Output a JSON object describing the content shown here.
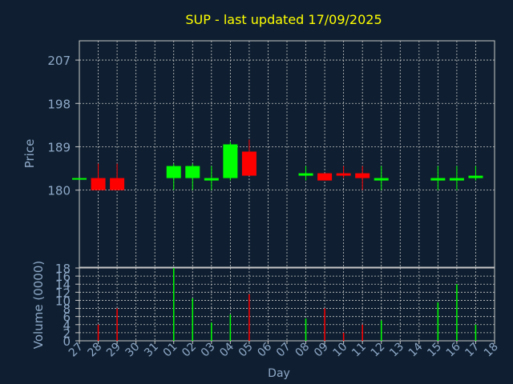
{
  "colors": {
    "background": "#0f1f31",
    "title": "#ffff00",
    "axis_text": "#8fa9c8",
    "grid": "#c8c8c8",
    "axis_line": "#c8c8c8",
    "up": "#00ff00",
    "down": "#ff0000"
  },
  "chart_data": [
    {
      "type": "candlestick",
      "title": "SUP - last updated 17/09/2025",
      "ylabel": "Price",
      "ylim": [
        164,
        211
      ],
      "y_ticks": [
        180,
        189,
        198,
        207
      ],
      "grid": true,
      "categories": [
        "27",
        "28",
        "29",
        "30",
        "31",
        "01",
        "02",
        "03",
        "04",
        "05",
        "06",
        "07",
        "08",
        "09",
        "10",
        "11",
        "12",
        "13",
        "14",
        "15",
        "16",
        "17",
        "18"
      ],
      "candles": [
        {
          "day": "27",
          "open": 182.5,
          "high": 182.5,
          "low": 182.5,
          "close": 182.5
        },
        {
          "day": "28",
          "open": 182.5,
          "high": 185.5,
          "low": 180.0,
          "close": 180.0
        },
        {
          "day": "29",
          "open": 182.5,
          "high": 185.5,
          "low": 180.0,
          "close": 180.0
        },
        {
          "day": "01",
          "open": 182.5,
          "high": 185.5,
          "low": 180.0,
          "close": 185.0
        },
        {
          "day": "02",
          "open": 182.5,
          "high": 185.5,
          "low": 180.0,
          "close": 185.0
        },
        {
          "day": "03",
          "open": 182.0,
          "high": 185.0,
          "low": 180.0,
          "close": 182.5
        },
        {
          "day": "04",
          "open": 182.5,
          "high": 190.0,
          "low": 182.0,
          "close": 189.5
        },
        {
          "day": "05",
          "open": 188.0,
          "high": 190.5,
          "low": 183.0,
          "close": 183.0
        },
        {
          "day": "08",
          "open": 183.0,
          "high": 185.0,
          "low": 182.0,
          "close": 183.5
        },
        {
          "day": "09",
          "open": 183.5,
          "high": 183.5,
          "low": 182.0,
          "close": 182.0
        },
        {
          "day": "10",
          "open": 183.5,
          "high": 185.0,
          "low": 182.5,
          "close": 183.0
        },
        {
          "day": "11",
          "open": 183.5,
          "high": 185.0,
          "low": 180.0,
          "close": 182.5
        },
        {
          "day": "12",
          "open": 182.0,
          "high": 185.0,
          "low": 180.0,
          "close": 182.5
        },
        {
          "day": "15",
          "open": 182.0,
          "high": 185.0,
          "low": 180.0,
          "close": 182.5
        },
        {
          "day": "16",
          "open": 182.0,
          "high": 185.0,
          "low": 180.0,
          "close": 182.5
        },
        {
          "day": "17",
          "open": 182.5,
          "high": 185.0,
          "low": 182.0,
          "close": 183.0
        }
      ]
    },
    {
      "type": "bar",
      "xlabel": "Day",
      "ylabel": "Volume (0000)",
      "ylim": [
        0,
        18
      ],
      "y_ticks": [
        0,
        2,
        4,
        6,
        8,
        10,
        12,
        14,
        16,
        18
      ],
      "grid": true,
      "categories": [
        "27",
        "28",
        "29",
        "30",
        "31",
        "01",
        "02",
        "03",
        "04",
        "05",
        "06",
        "07",
        "08",
        "09",
        "10",
        "11",
        "12",
        "13",
        "14",
        "15",
        "16",
        "17",
        "18"
      ],
      "x_tick_labels": [
        "27",
        "28",
        "29",
        "30",
        "31",
        "01",
        "02",
        "03",
        "04",
        "05",
        "06",
        "07",
        "08",
        "09",
        "10",
        "11",
        "12",
        "13",
        "14",
        "15",
        "16",
        "17",
        "18"
      ],
      "bars": [
        {
          "day": "28",
          "value": 4,
          "dir": "down"
        },
        {
          "day": "29",
          "value": 8,
          "dir": "down"
        },
        {
          "day": "01",
          "value": 18,
          "dir": "up"
        },
        {
          "day": "02",
          "value": 10.5,
          "dir": "up"
        },
        {
          "day": "03",
          "value": 4.5,
          "dir": "up"
        },
        {
          "day": "04",
          "value": 6.5,
          "dir": "up"
        },
        {
          "day": "05",
          "value": 11.5,
          "dir": "down"
        },
        {
          "day": "08",
          "value": 5.5,
          "dir": "up"
        },
        {
          "day": "09",
          "value": 8,
          "dir": "down"
        },
        {
          "day": "10",
          "value": 2,
          "dir": "down"
        },
        {
          "day": "11",
          "value": 4,
          "dir": "down"
        },
        {
          "day": "12",
          "value": 5,
          "dir": "up"
        },
        {
          "day": "15",
          "value": 9.5,
          "dir": "up"
        },
        {
          "day": "16",
          "value": 14,
          "dir": "up"
        },
        {
          "day": "17",
          "value": 4,
          "dir": "up"
        }
      ]
    }
  ]
}
